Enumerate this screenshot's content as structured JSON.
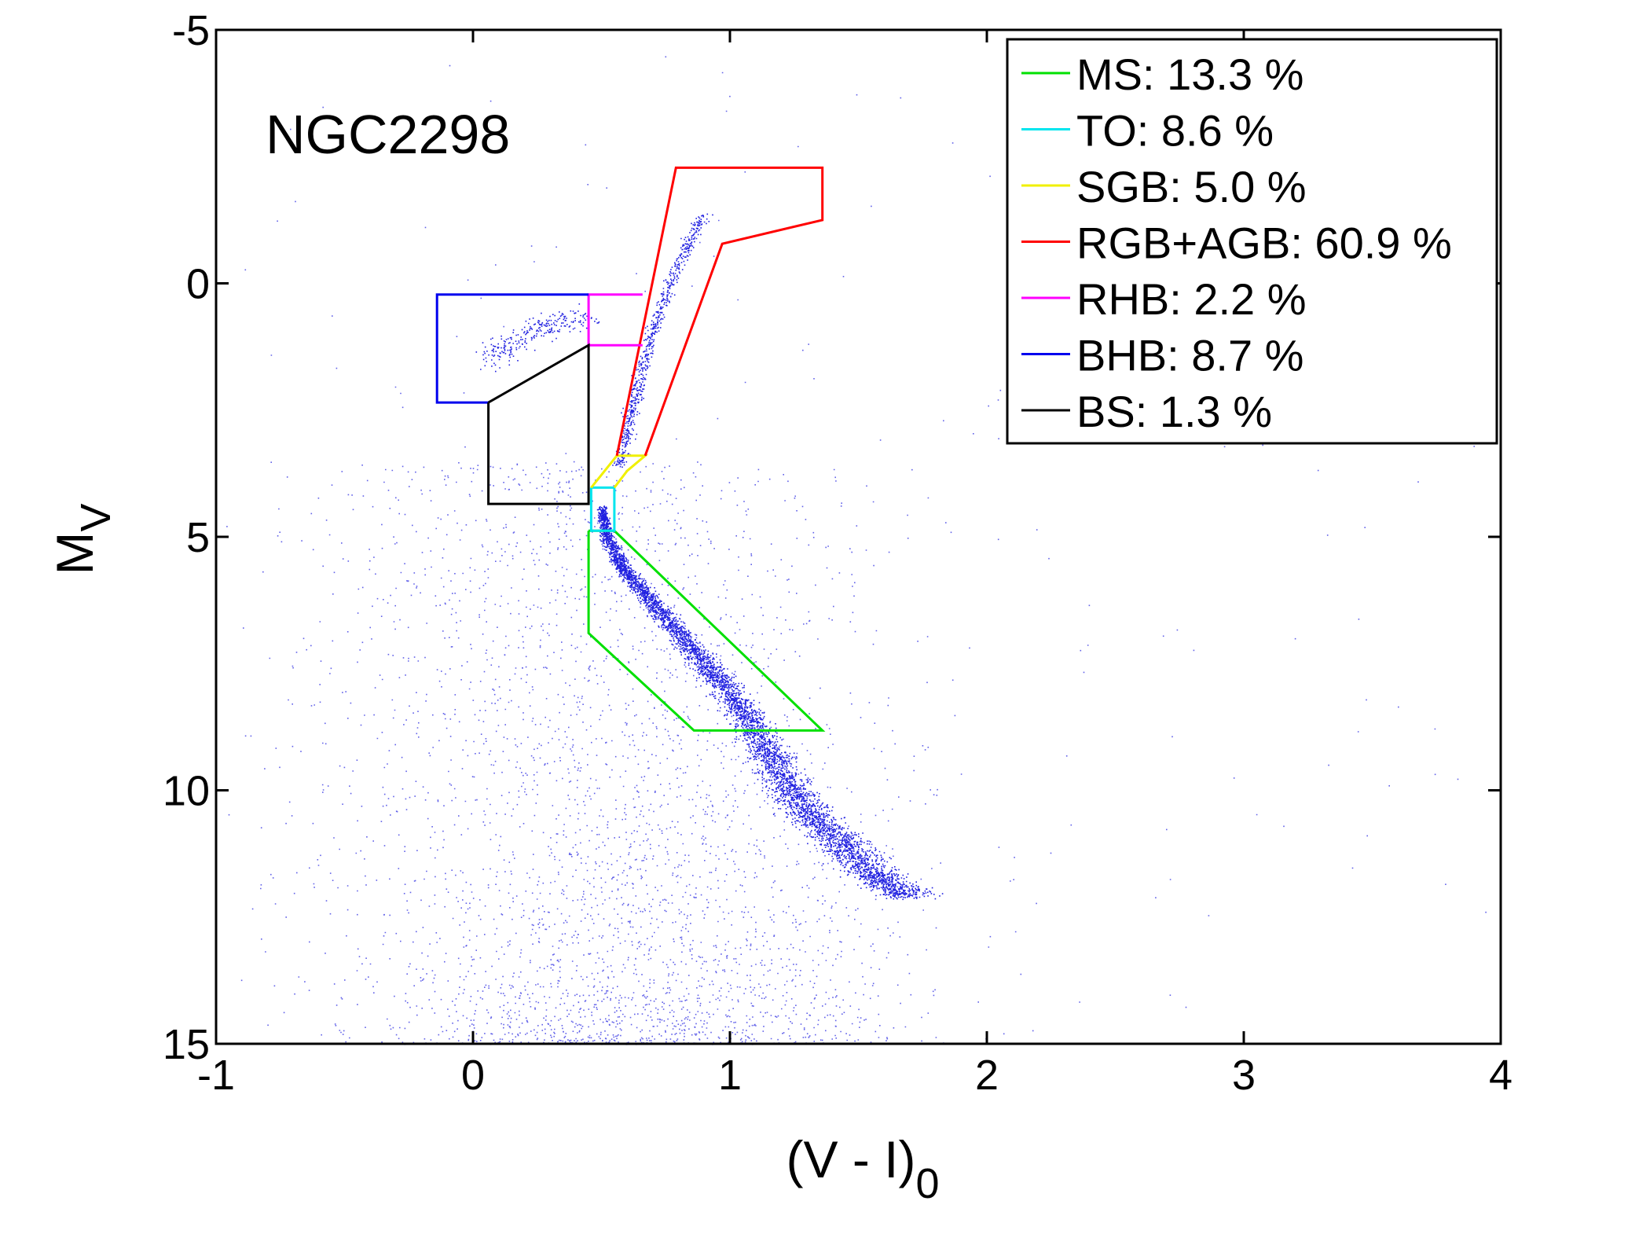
{
  "chart_data": {
    "type": "scatter",
    "title": "NGC2298",
    "xlabel": "(V - I)",
    "xlabel_sub": "0",
    "ylabel": "M",
    "ylabel_sub": "V",
    "xlim": [
      -1,
      4
    ],
    "ylim": [
      -5,
      15
    ],
    "y_inverted": true,
    "xticks": [
      -1,
      0,
      1,
      2,
      3,
      4
    ],
    "yticks": [
      -5,
      0,
      5,
      10,
      15
    ],
    "xtick_labels": [
      "-1",
      "0",
      "1",
      "2",
      "3",
      "4"
    ],
    "ytick_labels": [
      "-5",
      "0",
      "5",
      "10",
      "15"
    ],
    "grid": false,
    "legend_position": "top-right",
    "point_color": "#2020e0",
    "regions": [
      {
        "name": "MS",
        "label": "MS: 13.3 %",
        "percent": 13.3,
        "color": "#00e000",
        "polygon": [
          [
            0.45,
            4.88
          ],
          [
            0.55,
            4.88
          ],
          [
            1.36,
            8.82
          ],
          [
            0.86,
            8.82
          ],
          [
            0.45,
            6.9
          ],
          [
            0.45,
            4.88
          ]
        ]
      },
      {
        "name": "TO",
        "label": "TO: 8.6 %",
        "percent": 8.6,
        "color": "#00e5ee",
        "polygon": [
          [
            0.46,
            4.03
          ],
          [
            0.55,
            4.03
          ],
          [
            0.55,
            4.88
          ],
          [
            0.46,
            4.88
          ],
          [
            0.46,
            4.03
          ]
        ]
      },
      {
        "name": "SGB",
        "label": "SGB: 5.0 %",
        "percent": 5.0,
        "color": "#f0f000",
        "polygon": [
          [
            0.46,
            4.03
          ],
          [
            0.56,
            3.4
          ],
          [
            0.67,
            3.4
          ],
          [
            0.6,
            3.7
          ],
          [
            0.55,
            4.03
          ]
        ]
      },
      {
        "name": "RGB+AGB",
        "label": "RGB+AGB: 60.9 %",
        "percent": 60.9,
        "color": "#ff0000",
        "polygon": [
          [
            0.56,
            3.4
          ],
          [
            0.79,
            -2.28
          ],
          [
            1.36,
            -2.28
          ],
          [
            1.36,
            -1.25
          ],
          [
            0.97,
            -0.78
          ],
          [
            0.67,
            3.4
          ]
        ]
      },
      {
        "name": "RHB",
        "label": "RHB: 2.2 %",
        "percent": 2.2,
        "color": "#ff00ff",
        "polygon": [
          [
            0.66,
            0.22
          ],
          [
            0.45,
            0.22
          ],
          [
            0.45,
            1.22
          ],
          [
            0.66,
            1.22
          ]
        ]
      },
      {
        "name": "BHB",
        "label": "BHB: 8.7 %",
        "percent": 8.7,
        "color": "#0000ee",
        "polygon": [
          [
            0.45,
            0.22
          ],
          [
            -0.14,
            0.22
          ],
          [
            -0.14,
            2.35
          ],
          [
            0.06,
            2.35
          ]
        ]
      },
      {
        "name": "BS",
        "label": "BS: 1.3 %",
        "percent": 1.3,
        "color": "#000000",
        "polygon": [
          [
            0.06,
            2.35
          ],
          [
            0.45,
            1.22
          ],
          [
            0.45,
            4.35
          ],
          [
            0.06,
            4.35
          ],
          [
            0.06,
            2.35
          ]
        ]
      }
    ],
    "fiducial_sequence": [
      {
        "x": 0.5,
        "y": 4.4
      },
      {
        "x": 0.52,
        "y": 5.0
      },
      {
        "x": 0.58,
        "y": 5.6
      },
      {
        "x": 0.68,
        "y": 6.2
      },
      {
        "x": 0.8,
        "y": 6.9
      },
      {
        "x": 0.92,
        "y": 7.6
      },
      {
        "x": 1.03,
        "y": 8.3
      },
      {
        "x": 1.12,
        "y": 9.0
      },
      {
        "x": 1.2,
        "y": 9.7
      },
      {
        "x": 1.3,
        "y": 10.4
      },
      {
        "x": 1.42,
        "y": 11.0
      },
      {
        "x": 1.55,
        "y": 11.6
      },
      {
        "x": 1.7,
        "y": 12.1
      }
    ],
    "giant_branch": [
      {
        "x": 0.57,
        "y": 3.6
      },
      {
        "x": 0.61,
        "y": 2.6
      },
      {
        "x": 0.66,
        "y": 1.6
      },
      {
        "x": 0.72,
        "y": 0.6
      },
      {
        "x": 0.8,
        "y": -0.4
      },
      {
        "x": 0.9,
        "y": -1.4
      }
    ],
    "horizontal_branch": [
      {
        "x": 0.05,
        "y": 1.5
      },
      {
        "x": 0.15,
        "y": 1.2
      },
      {
        "x": 0.25,
        "y": 0.9
      },
      {
        "x": 0.35,
        "y": 0.75
      },
      {
        "x": 0.45,
        "y": 0.7
      }
    ]
  }
}
